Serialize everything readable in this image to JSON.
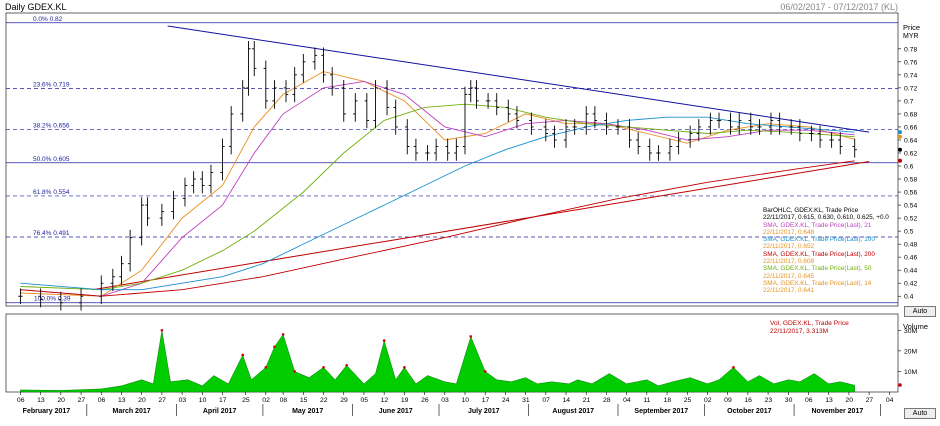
{
  "window": {
    "title": "Daily GDEX.KL",
    "date_range": "06/02/2017 - 07/12/2017 (KL)"
  },
  "price_axis": {
    "title": "Price",
    "unit": "MYR",
    "ticks": [
      "0.78",
      "0.76",
      "0.74",
      "0.72",
      "0.7",
      "0.68",
      "0.66",
      "0.64",
      "0.62",
      "0.6",
      "0.58",
      "0.56",
      "0.54",
      "0.52",
      "0.5",
      "0.48",
      "0.46",
      "0.44",
      "0.42",
      "0.4"
    ]
  },
  "volume_axis": {
    "title": "Volume",
    "ticks": [
      "30M",
      "20M",
      "10M"
    ]
  },
  "auto_label": "Auto",
  "legend": {
    "main": [
      {
        "title": "BarOHLC, GDEX.KL, Trade Price",
        "value": "22/11/2017, 0.615, 0.630, 0.610, 0.625, +0.0",
        "color": "#000000"
      },
      {
        "title": "SMA, GDEX.KL, Trade Price(Last), 21",
        "value": "22/11/2017, 0.648",
        "color": "#c040c0"
      },
      {
        "title": "SMA, GDEX.KL, Trade Price(Last), 100",
        "value": "22/11/2017, 0.652",
        "color": "#1a90d0"
      },
      {
        "title": "SMA, GDEX.KL, Trade Price(Last), 200",
        "value": "22/11/2017, 0.608",
        "color": "#c00000"
      },
      {
        "title": "SMA, GDEX.KL, Trade Price(Last), 50",
        "value": "22/11/2017, 0.645",
        "color": "#70b010"
      },
      {
        "title": "SMA, GDEX.KL, Trade Price(Last), 14",
        "value": "22/11/2017, 0.641",
        "color": "#e89020"
      }
    ],
    "volume": {
      "title": "Vol, GDEX.KL, Trade Price",
      "value": "22/11/2017, 3.313M"
    }
  },
  "x_axis": {
    "days": [
      "06",
      "13",
      "20",
      "27",
      "06",
      "13",
      "20",
      "27",
      "03",
      "10",
      "17",
      "25",
      "02",
      "08",
      "15",
      "22",
      "29",
      "05",
      "12",
      "19",
      "26",
      "03",
      "10",
      "17",
      "24",
      "31",
      "07",
      "14",
      "21",
      "28",
      "04",
      "11",
      "18",
      "25",
      "02",
      "09",
      "16",
      "23",
      "30",
      "06",
      "13",
      "20",
      "27",
      "04"
    ],
    "months": [
      "February 2017",
      "March 2017",
      "April 2017",
      "May 2017",
      "June 2017",
      "July 2017",
      "August 2017",
      "September 2017",
      "October 2017",
      "November 2017"
    ]
  },
  "chart_data": {
    "type": "line",
    "fibonacci_levels": [
      {
        "label": "0.0%",
        "value": 0.82
      },
      {
        "label": "23.6%",
        "value": 0.719
      },
      {
        "label": "38.2%",
        "value": 0.656
      },
      {
        "label": "50.0%",
        "value": 0.605
      },
      {
        "label": "61.8%",
        "value": 0.554
      },
      {
        "label": "76.4%",
        "value": 0.491
      },
      {
        "label": "100.0%",
        "value": 0.39
      }
    ],
    "price_ylim": [
      0.385,
      0.835
    ],
    "volume_max_M": 35,
    "trendlines": [
      {
        "from": [
          "2017-03-29",
          0.815
        ],
        "to": [
          "2017-11-27",
          0.652
        ],
        "color": "#1010a0"
      },
      {
        "from": [
          "2017-03-03",
          0.41
        ],
        "to": [
          "2017-11-27",
          0.607
        ],
        "color": "#c00000"
      }
    ],
    "price_close": [
      [
        "2017-02-06",
        0.4
      ],
      [
        "2017-02-13",
        0.395
      ],
      [
        "2017-02-20",
        0.39
      ],
      [
        "2017-02-27",
        0.4
      ],
      [
        "2017-03-06",
        0.42
      ],
      [
        "2017-03-10",
        0.43
      ],
      [
        "2017-03-13",
        0.45
      ],
      [
        "2017-03-16",
        0.49
      ],
      [
        "2017-03-20",
        0.54
      ],
      [
        "2017-03-22",
        0.52
      ],
      [
        "2017-03-27",
        0.53
      ],
      [
        "2017-03-31",
        0.55
      ],
      [
        "2017-04-04",
        0.57
      ],
      [
        "2017-04-07",
        0.58
      ],
      [
        "2017-04-10",
        0.57
      ],
      [
        "2017-04-13",
        0.59
      ],
      [
        "2017-04-17",
        0.63
      ],
      [
        "2017-04-20",
        0.68
      ],
      [
        "2017-04-24",
        0.72
      ],
      [
        "2017-04-26",
        0.78
      ],
      [
        "2017-04-28",
        0.75
      ],
      [
        "2017-05-02",
        0.7
      ],
      [
        "2017-05-05",
        0.72
      ],
      [
        "2017-05-09",
        0.71
      ],
      [
        "2017-05-12",
        0.74
      ],
      [
        "2017-05-15",
        0.76
      ],
      [
        "2017-05-19",
        0.77
      ],
      [
        "2017-05-22",
        0.74
      ],
      [
        "2017-05-25",
        0.72
      ],
      [
        "2017-05-29",
        0.68
      ],
      [
        "2017-06-02",
        0.7
      ],
      [
        "2017-06-06",
        0.67
      ],
      [
        "2017-06-09",
        0.72
      ],
      [
        "2017-06-13",
        0.69
      ],
      [
        "2017-06-16",
        0.66
      ],
      [
        "2017-06-20",
        0.63
      ],
      [
        "2017-06-23",
        0.62
      ],
      [
        "2017-06-27",
        0.62
      ],
      [
        "2017-06-30",
        0.63
      ],
      [
        "2017-07-04",
        0.62
      ],
      [
        "2017-07-07",
        0.63
      ],
      [
        "2017-07-10",
        0.71
      ],
      [
        "2017-07-12",
        0.72
      ],
      [
        "2017-07-14",
        0.7
      ],
      [
        "2017-07-18",
        0.7
      ],
      [
        "2017-07-21",
        0.69
      ],
      [
        "2017-07-25",
        0.68
      ],
      [
        "2017-07-28",
        0.67
      ],
      [
        "2017-08-02",
        0.66
      ],
      [
        "2017-08-07",
        0.65
      ],
      [
        "2017-08-10",
        0.64
      ],
      [
        "2017-08-14",
        0.66
      ],
      [
        "2017-08-17",
        0.66
      ],
      [
        "2017-08-21",
        0.68
      ],
      [
        "2017-08-24",
        0.67
      ],
      [
        "2017-08-28",
        0.66
      ],
      [
        "2017-09-01",
        0.66
      ],
      [
        "2017-09-05",
        0.64
      ],
      [
        "2017-09-08",
        0.63
      ],
      [
        "2017-09-12",
        0.62
      ],
      [
        "2017-09-15",
        0.62
      ],
      [
        "2017-09-19",
        0.63
      ],
      [
        "2017-09-22",
        0.64
      ],
      [
        "2017-09-26",
        0.65
      ],
      [
        "2017-09-29",
        0.66
      ],
      [
        "2017-10-03",
        0.67
      ],
      [
        "2017-10-06",
        0.67
      ],
      [
        "2017-10-10",
        0.66
      ],
      [
        "2017-10-13",
        0.67
      ],
      [
        "2017-10-17",
        0.66
      ],
      [
        "2017-10-20",
        0.66
      ],
      [
        "2017-10-24",
        0.67
      ],
      [
        "2017-10-27",
        0.66
      ],
      [
        "2017-10-31",
        0.66
      ],
      [
        "2017-11-03",
        0.65
      ],
      [
        "2017-11-07",
        0.65
      ],
      [
        "2017-11-10",
        0.64
      ],
      [
        "2017-11-14",
        0.64
      ],
      [
        "2017-11-17",
        0.63
      ],
      [
        "2017-11-22",
        0.625
      ]
    ],
    "series": [
      {
        "name": "SMA 14",
        "color": "#e89020",
        "points": [
          [
            "2017-02-06",
            0.405
          ],
          [
            "2017-03-06",
            0.4
          ],
          [
            "2017-03-20",
            0.44
          ],
          [
            "2017-04-03",
            0.52
          ],
          [
            "2017-04-17",
            0.57
          ],
          [
            "2017-04-28",
            0.66
          ],
          [
            "2017-05-08",
            0.71
          ],
          [
            "2017-05-22",
            0.745
          ],
          [
            "2017-06-05",
            0.73
          ],
          [
            "2017-06-19",
            0.7
          ],
          [
            "2017-07-03",
            0.64
          ],
          [
            "2017-07-17",
            0.65
          ],
          [
            "2017-07-31",
            0.68
          ],
          [
            "2017-08-14",
            0.665
          ],
          [
            "2017-08-28",
            0.665
          ],
          [
            "2017-09-11",
            0.65
          ],
          [
            "2017-09-25",
            0.635
          ],
          [
            "2017-10-09",
            0.655
          ],
          [
            "2017-10-23",
            0.665
          ],
          [
            "2017-11-06",
            0.66
          ],
          [
            "2017-11-22",
            0.641
          ]
        ]
      },
      {
        "name": "SMA 21",
        "color": "#c040c0",
        "points": [
          [
            "2017-02-06",
            0.41
          ],
          [
            "2017-03-06",
            0.4
          ],
          [
            "2017-03-20",
            0.42
          ],
          [
            "2017-04-03",
            0.49
          ],
          [
            "2017-04-17",
            0.54
          ],
          [
            "2017-04-28",
            0.62
          ],
          [
            "2017-05-08",
            0.68
          ],
          [
            "2017-05-22",
            0.72
          ],
          [
            "2017-06-05",
            0.73
          ],
          [
            "2017-06-19",
            0.71
          ],
          [
            "2017-07-03",
            0.66
          ],
          [
            "2017-07-17",
            0.645
          ],
          [
            "2017-07-31",
            0.665
          ],
          [
            "2017-08-14",
            0.67
          ],
          [
            "2017-08-28",
            0.665
          ],
          [
            "2017-09-11",
            0.655
          ],
          [
            "2017-09-25",
            0.64
          ],
          [
            "2017-10-09",
            0.645
          ],
          [
            "2017-10-23",
            0.655
          ],
          [
            "2017-11-06",
            0.655
          ],
          [
            "2017-11-22",
            0.648
          ]
        ]
      },
      {
        "name": "SMA 50",
        "color": "#70b010",
        "points": [
          [
            "2017-02-06",
            0.415
          ],
          [
            "2017-03-06",
            0.41
          ],
          [
            "2017-03-20",
            0.42
          ],
          [
            "2017-04-03",
            0.44
          ],
          [
            "2017-04-17",
            0.47
          ],
          [
            "2017-04-28",
            0.5
          ],
          [
            "2017-05-15",
            0.56
          ],
          [
            "2017-05-29",
            0.62
          ],
          [
            "2017-06-12",
            0.67
          ],
          [
            "2017-06-26",
            0.69
          ],
          [
            "2017-07-10",
            0.695
          ],
          [
            "2017-07-24",
            0.69
          ],
          [
            "2017-08-07",
            0.675
          ],
          [
            "2017-08-21",
            0.665
          ],
          [
            "2017-09-04",
            0.66
          ],
          [
            "2017-09-18",
            0.655
          ],
          [
            "2017-10-02",
            0.65
          ],
          [
            "2017-10-16",
            0.655
          ],
          [
            "2017-10-30",
            0.652
          ],
          [
            "2017-11-22",
            0.645
          ]
        ]
      },
      {
        "name": "SMA 100",
        "color": "#1a90d0",
        "points": [
          [
            "2017-02-06",
            0.42
          ],
          [
            "2017-03-06",
            0.41
          ],
          [
            "2017-03-20",
            0.41
          ],
          [
            "2017-04-03",
            0.42
          ],
          [
            "2017-04-17",
            0.43
          ],
          [
            "2017-05-01",
            0.45
          ],
          [
            "2017-05-15",
            0.48
          ],
          [
            "2017-05-29",
            0.51
          ],
          [
            "2017-06-12",
            0.54
          ],
          [
            "2017-06-26",
            0.57
          ],
          [
            "2017-07-10",
            0.6
          ],
          [
            "2017-07-24",
            0.625
          ],
          [
            "2017-08-07",
            0.645
          ],
          [
            "2017-08-21",
            0.66
          ],
          [
            "2017-09-04",
            0.67
          ],
          [
            "2017-09-18",
            0.675
          ],
          [
            "2017-10-02",
            0.675
          ],
          [
            "2017-10-16",
            0.665
          ],
          [
            "2017-10-30",
            0.66
          ],
          [
            "2017-11-22",
            0.652
          ]
        ]
      },
      {
        "name": "SMA 200",
        "color": "#c00000",
        "points": [
          [
            "2017-02-06",
            0.41
          ],
          [
            "2017-03-06",
            0.4
          ],
          [
            "2017-04-03",
            0.41
          ],
          [
            "2017-05-01",
            0.43
          ],
          [
            "2017-06-01",
            0.46
          ],
          [
            "2017-07-03",
            0.49
          ],
          [
            "2017-08-01",
            0.52
          ],
          [
            "2017-09-01",
            0.55
          ],
          [
            "2017-10-02",
            0.575
          ],
          [
            "2017-11-01",
            0.595
          ],
          [
            "2017-11-22",
            0.608
          ]
        ]
      }
    ],
    "volume_M": [
      [
        "2017-02-06",
        1
      ],
      [
        "2017-02-20",
        0.8
      ],
      [
        "2017-03-06",
        1.5
      ],
      [
        "2017-03-13",
        3
      ],
      [
        "2017-03-20",
        6
      ],
      [
        "2017-03-24",
        4
      ],
      [
        "2017-03-27",
        30
      ],
      [
        "2017-03-30",
        5
      ],
      [
        "2017-04-05",
        6
      ],
      [
        "2017-04-10",
        3
      ],
      [
        "2017-04-14",
        8
      ],
      [
        "2017-04-19",
        4
      ],
      [
        "2017-04-24",
        18
      ],
      [
        "2017-04-27",
        6
      ],
      [
        "2017-05-02",
        12
      ],
      [
        "2017-05-05",
        22
      ],
      [
        "2017-05-08",
        28
      ],
      [
        "2017-05-12",
        10
      ],
      [
        "2017-05-17",
        7
      ],
      [
        "2017-05-22",
        12
      ],
      [
        "2017-05-26",
        6
      ],
      [
        "2017-05-30",
        13
      ],
      [
        "2017-06-05",
        4
      ],
      [
        "2017-06-09",
        9
      ],
      [
        "2017-06-12",
        25
      ],
      [
        "2017-06-16",
        6
      ],
      [
        "2017-06-19",
        12
      ],
      [
        "2017-06-23",
        4
      ],
      [
        "2017-06-27",
        8
      ],
      [
        "2017-07-03",
        5
      ],
      [
        "2017-07-07",
        4
      ],
      [
        "2017-07-12",
        27
      ],
      [
        "2017-07-17",
        10
      ],
      [
        "2017-07-21",
        6
      ],
      [
        "2017-07-26",
        5
      ],
      [
        "2017-07-31",
        7
      ],
      [
        "2017-08-04",
        4
      ],
      [
        "2017-08-09",
        5
      ],
      [
        "2017-08-15",
        4
      ],
      [
        "2017-08-18",
        6
      ],
      [
        "2017-08-23",
        4
      ],
      [
        "2017-08-29",
        9
      ],
      [
        "2017-09-04",
        4
      ],
      [
        "2017-09-11",
        6
      ],
      [
        "2017-09-15",
        3
      ],
      [
        "2017-09-20",
        5
      ],
      [
        "2017-09-26",
        7
      ],
      [
        "2017-10-02",
        4
      ],
      [
        "2017-10-06",
        6
      ],
      [
        "2017-10-11",
        12
      ],
      [
        "2017-10-16",
        5
      ],
      [
        "2017-10-20",
        8
      ],
      [
        "2017-10-25",
        4
      ],
      [
        "2017-10-30",
        6
      ],
      [
        "2017-11-03",
        5
      ],
      [
        "2017-11-08",
        9
      ],
      [
        "2017-11-13",
        4
      ],
      [
        "2017-11-17",
        5
      ],
      [
        "2017-11-22",
        3.3
      ]
    ]
  }
}
